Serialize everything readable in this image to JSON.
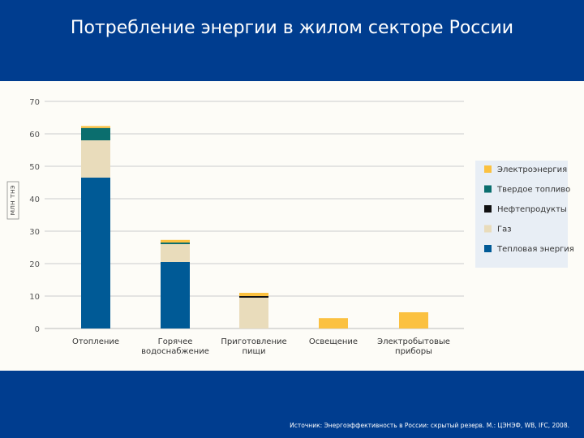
{
  "slide": {
    "title": "Потребление энергии в жилом секторе России",
    "source": "Источник: Энергоэффективность в России: скрытый резерв. М.: ЦЭНЭФ, WB, IFC, 2008."
  },
  "colors": {
    "background": "#003d8f",
    "panel": "#fdfcf7",
    "legend_box": "#e8eef5"
  },
  "chart_data": {
    "type": "bar",
    "stacked": true,
    "title": "",
    "ylabel": "млн тнэ",
    "xlabel": "",
    "ylim": [
      0,
      70
    ],
    "yticks": [
      0,
      10,
      20,
      30,
      40,
      50,
      60,
      70
    ],
    "grid": true,
    "legend_position": "right",
    "categories": [
      [
        "Отопление"
      ],
      [
        "Горячее",
        "водоснабжение"
      ],
      [
        "Приготовление",
        "пищи"
      ],
      [
        "Освещение"
      ],
      [
        "Электробытовые",
        "приборы"
      ]
    ],
    "series": [
      {
        "name": "Тепловая энергия",
        "color": "#005a96",
        "values": [
          46.5,
          20.5,
          0,
          0,
          0
        ]
      },
      {
        "name": "Газ",
        "color": "#e9dcbb",
        "values": [
          11.5,
          5.5,
          9.5,
          0,
          0
        ]
      },
      {
        "name": "Нефтепродукты",
        "color": "#111111",
        "values": [
          0,
          0,
          0.5,
          0,
          0
        ]
      },
      {
        "name": "Твердое топливо",
        "color": "#0b6e6e",
        "values": [
          3.8,
          0.5,
          0,
          0,
          0
        ]
      },
      {
        "name": "Электроэнергия",
        "color": "#fbc140",
        "values": [
          0.6,
          0.8,
          1.0,
          3.2,
          5.0
        ]
      }
    ],
    "legend_order": [
      "Электроэнергия",
      "Твердое топливо",
      "Нефтепродукты",
      "Газ",
      "Тепловая энергия"
    ]
  }
}
